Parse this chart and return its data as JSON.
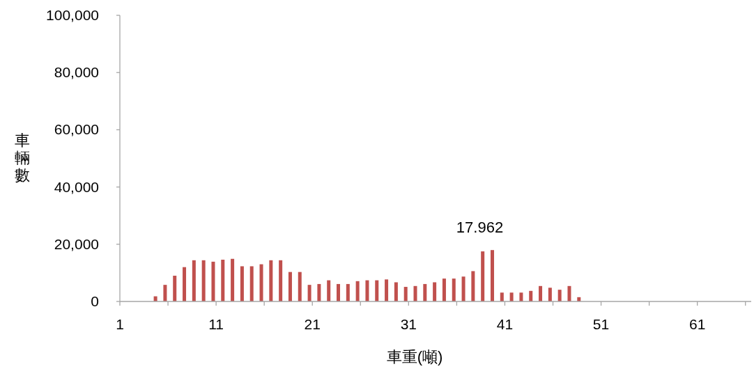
{
  "chart_data": {
    "type": "bar",
    "xlabel": "車重(噸)",
    "ylabel": "車輛數",
    "color": "#c0504d",
    "x": [
      4.7,
      5.7,
      6.7,
      7.7,
      8.7,
      9.7,
      10.7,
      11.7,
      12.7,
      13.7,
      14.7,
      15.7,
      16.7,
      17.7,
      18.7,
      19.7,
      20.7,
      21.7,
      22.7,
      23.7,
      24.7,
      25.7,
      26.7,
      27.7,
      28.7,
      29.7,
      30.7,
      31.7,
      32.7,
      33.7,
      34.7,
      35.7,
      36.7,
      37.7,
      38.7,
      39.7,
      40.7,
      41.7,
      42.7,
      43.7,
      44.7,
      45.7,
      46.7,
      47.7,
      48.7
    ],
    "values": [
      1800,
      5800,
      9000,
      12000,
      14400,
      14400,
      13900,
      14600,
      14900,
      12300,
      12300,
      13000,
      14400,
      14400,
      10300,
      10300,
      5800,
      6100,
      7400,
      6100,
      6100,
      7100,
      7400,
      7400,
      7700,
      6700,
      5100,
      5400,
      6100,
      6700,
      8000,
      8000,
      8700,
      10600,
      17500,
      17962,
      3100,
      3100,
      3100,
      3700,
      5400,
      4800,
      4100,
      5400,
      1500
    ],
    "annotations": [
      {
        "text": "17.962",
        "x": 39.7,
        "y": 17962
      }
    ],
    "xlim": [
      1,
      66.6
    ],
    "xticks": [
      1,
      {
        "value": 6,
        "label": null
      },
      11,
      {
        "value": 16,
        "label": null
      },
      21,
      {
        "value": 26,
        "label": null
      },
      31,
      {
        "value": 36,
        "label": null
      },
      41,
      {
        "value": 46,
        "label": null
      },
      51,
      {
        "value": 56,
        "label": null
      },
      61,
      {
        "value": 66,
        "label": null
      }
    ],
    "ylim": [
      0,
      100000
    ],
    "yticks": [
      {
        "value": 0,
        "label": "0"
      },
      {
        "value": 20000,
        "label": "20,000"
      },
      {
        "value": 40000,
        "label": "40,000"
      },
      {
        "value": 60000,
        "label": "60,000"
      },
      {
        "value": 80000,
        "label": "80,000"
      },
      {
        "value": 100000,
        "label": "100,000"
      }
    ],
    "grid": false
  }
}
